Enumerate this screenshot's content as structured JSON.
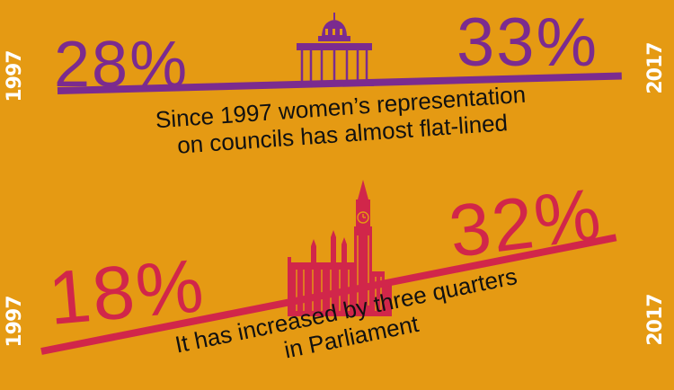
{
  "councils": {
    "start_year": "1997",
    "end_year": "2017",
    "start_pct": "28%",
    "end_pct": "33%",
    "caption_line1": "Since 1997 women’s representation",
    "caption_line2": "on councils has almost flat-lined",
    "icon": "council-building-icon",
    "color": "#7B2B8F"
  },
  "parliament": {
    "start_year": "1997",
    "end_year": "2017",
    "start_pct": "18%",
    "end_pct": "32%",
    "caption_line1": "It has increased by three quarters",
    "caption_line2": "in Parliament",
    "icon": "parliament-big-ben-icon",
    "color": "#D1264A"
  },
  "colors": {
    "background": "#E59A13",
    "year_text": "#FFFFFF",
    "caption_text": "#111111"
  }
}
